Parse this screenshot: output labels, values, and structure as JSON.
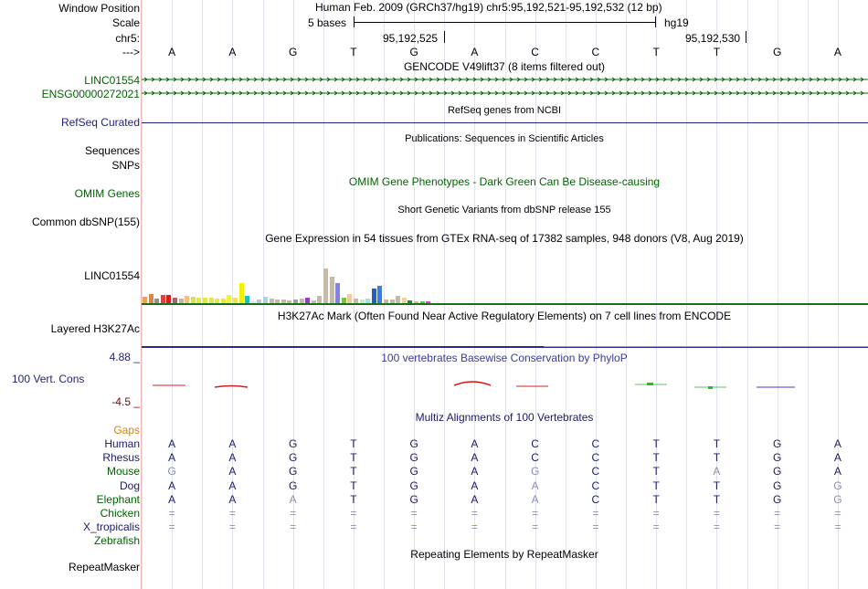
{
  "browser": {
    "position_label": "Window Position",
    "position_text": "Human Feb. 2009 (GRCh37/hg19)   chr5:95,192,521-95,192,532 (12 bp)",
    "scale_label": "Scale",
    "scale_text": "5 bases",
    "assembly": "hg19",
    "chrom_label": "chr5:",
    "coord_1": "95,192,525",
    "coord_2": "95,192,530",
    "strand_label": "--->",
    "bases": [
      "A",
      "A",
      "G",
      "T",
      "G",
      "A",
      "C",
      "C",
      "T",
      "T",
      "G",
      "A"
    ]
  },
  "tracks": {
    "gencode_title": "GENCODE V49lift37 (8 items filtered out)",
    "gencode_items": [
      "LINC01554",
      "ENSG00000272021"
    ],
    "refseq_label": "RefSeq Curated",
    "refseq_title": "RefSeq genes from NCBI",
    "pubs_title": "Publications: Sequences in Scientific Articles",
    "pubs_label_1": "Sequences",
    "pubs_label_2": "SNPs",
    "omim_title": "OMIM Gene Phenotypes - Dark Green Can Be Disease-causing",
    "omim_label": "OMIM Genes",
    "dbsnp_title": "Short Genetic Variants from dbSNP release 155",
    "dbsnp_label": "Common dbSNP(155)",
    "gtex_title": "Gene Expression in 54 tissues from GTEx RNA-seq of 17382 samples, 948 donors (V8, Aug 2019)",
    "gtex_label": "LINC01554",
    "h3k27ac_title": "H3K27Ac Mark (Often Found Near Active Regulatory Elements) on 7 cell lines from ENCODE",
    "h3k27ac_label": "Layered H3K27Ac",
    "cons_title": "100 vertebrates Basewise Conservation by PhyloP",
    "cons_label": "100 Vert. Cons",
    "cons_max": "4.88 _",
    "cons_min": "-4.5 _",
    "multiz_title": "Multiz Alignments of 100 Vertebrates",
    "gaps_label": "Gaps",
    "rmsk_title": "Repeating Elements by RepeatMasker",
    "rmsk_label": "RepeatMasker"
  },
  "gtex_bars": [
    {
      "c": "#f0a050",
      "v": 0.18
    },
    {
      "c": "#e88040",
      "v": 0.27
    },
    {
      "c": "#909090",
      "v": 0.12
    },
    {
      "c": "#e04040",
      "v": 0.24
    },
    {
      "c": "#d02020",
      "v": 0.24
    },
    {
      "c": "#b06060",
      "v": 0.15
    },
    {
      "c": "#d0b0a0",
      "v": 0.13
    },
    {
      "c": "#f0c080",
      "v": 0.2
    },
    {
      "c": "#e0e040",
      "v": 0.19
    },
    {
      "c": "#e8e840",
      "v": 0.15
    },
    {
      "c": "#e8e840",
      "v": 0.15
    },
    {
      "c": "#e8e840",
      "v": 0.15
    },
    {
      "c": "#e8e840",
      "v": 0.13
    },
    {
      "c": "#e8e840",
      "v": 0.13
    },
    {
      "c": "#f0f040",
      "v": 0.23
    },
    {
      "c": "#e8e840",
      "v": 0.17
    },
    {
      "c": "#f0f000",
      "v": 0.58
    },
    {
      "c": "#20c0c0",
      "v": 0.21
    },
    {
      "c": "#e0e0e0",
      "v": 0.06
    },
    {
      "c": "#c0c0e0",
      "v": 0.1
    },
    {
      "c": "#b0d0e0",
      "v": 0.19
    },
    {
      "c": "#c8b8a8",
      "v": 0.13
    },
    {
      "c": "#c8b8a8",
      "v": 0.1
    },
    {
      "c": "#c8b8a8",
      "v": 0.1
    },
    {
      "c": "#c8b8a8",
      "v": 0.08
    },
    {
      "c": "#a0a0a0",
      "v": 0.1
    },
    {
      "c": "#c8b8a8",
      "v": 0.13
    },
    {
      "c": "#9040c0",
      "v": 0.15
    },
    {
      "c": "#c8b8a8",
      "v": 0.08
    },
    {
      "c": "#c8b8a8",
      "v": 0.2
    },
    {
      "c": "#c8b8a8",
      "v": 1.0
    },
    {
      "c": "#c8b8a8",
      "v": 0.75
    },
    {
      "c": "#8080f0",
      "v": 0.57
    },
    {
      "c": "#80c040",
      "v": 0.15
    },
    {
      "c": "#f0c8a0",
      "v": 0.25
    },
    {
      "c": "#c8b8a8",
      "v": 0.14
    },
    {
      "c": "#c8e8c8",
      "v": 0.1
    },
    {
      "c": "#a0e0e0",
      "v": 0.13
    },
    {
      "c": "#2060c0",
      "v": 0.41
    },
    {
      "c": "#3080f0",
      "v": 0.49
    },
    {
      "c": "#c8b8a8",
      "v": 0.1
    },
    {
      "c": "#c8b8a8",
      "v": 0.1
    },
    {
      "c": "#c8b8a8",
      "v": 0.21
    },
    {
      "c": "#f0d0a0",
      "v": 0.15
    },
    {
      "c": "#208050",
      "v": 0.08
    },
    {
      "c": "#c8b8a8",
      "v": 0.06
    },
    {
      "c": "#40d040",
      "v": 0.06
    },
    {
      "c": "#e040e0",
      "v": 0.06
    }
  ],
  "multiz": [
    {
      "species": "Human",
      "label_color": "#1a1a6e",
      "bases": [
        "A",
        "A",
        "G",
        "T",
        "G",
        "A",
        "C",
        "C",
        "T",
        "T",
        "G",
        "A"
      ],
      "faint": []
    },
    {
      "species": "Rhesus",
      "label_color": "#1a1a6e",
      "bases": [
        "A",
        "A",
        "G",
        "T",
        "G",
        "A",
        "C",
        "C",
        "T",
        "T",
        "G",
        "A"
      ],
      "faint": []
    },
    {
      "species": "Mouse",
      "label_color": "#006400",
      "bases": [
        "G",
        "A",
        "G",
        "T",
        "G",
        "A",
        "G",
        "C",
        "T",
        "A",
        "G",
        "A"
      ],
      "faint": [
        0,
        6,
        9
      ]
    },
    {
      "species": "Dog",
      "label_color": "#1a1a6e",
      "bases": [
        "A",
        "A",
        "G",
        "T",
        "G",
        "A",
        "A",
        "C",
        "T",
        "T",
        "G",
        "G"
      ],
      "faint": [
        6,
        11
      ]
    },
    {
      "species": "Elephant",
      "label_color": "#006400",
      "bases": [
        "A",
        "A",
        "A",
        "T",
        "G",
        "A",
        "A",
        "C",
        "T",
        "T",
        "G",
        "G"
      ],
      "faint": [
        2,
        6,
        11
      ]
    },
    {
      "species": "Chicken",
      "label_color": "#006400",
      "bases": [
        "=",
        "=",
        "=",
        "=",
        "=",
        "=",
        "=",
        "=",
        "=",
        "=",
        "=",
        "="
      ],
      "faint": [
        0,
        1,
        2,
        3,
        4,
        5,
        6,
        7,
        8,
        9,
        10,
        11
      ]
    },
    {
      "species": "X_tropicalis",
      "label_color": "#1a1a6e",
      "bases": [
        "=",
        "=",
        "=",
        "=",
        "=",
        "=",
        "=",
        "=",
        "=",
        "=",
        "=",
        "="
      ],
      "faint": [
        0,
        1,
        2,
        3,
        4,
        5,
        6,
        7,
        8,
        9,
        10,
        11
      ]
    },
    {
      "species": "Zebrafish",
      "label_color": "#006400",
      "bases": [],
      "faint": []
    }
  ],
  "colors": {
    "gencode_green": "#006400",
    "refseq_blue": "#1e1e80",
    "cons_blue": "#3a3a9a",
    "gaps_orange": "#e08000"
  }
}
